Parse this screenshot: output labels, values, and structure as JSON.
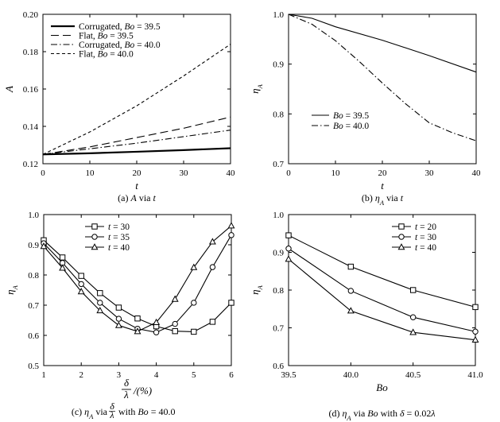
{
  "chart_data": [
    {
      "type": "line",
      "caption": "(a) A via t",
      "xlabel": "t",
      "ylabel": "A",
      "xlim": [
        0,
        40
      ],
      "ylim": [
        0.12,
        0.2
      ],
      "xticks": [
        0,
        10,
        20,
        30,
        40
      ],
      "yticks": [
        0.12,
        0.14,
        0.16,
        0.18,
        0.2
      ],
      "ytick_labels": [
        "0.12",
        "0.14",
        "0.16",
        "0.18",
        "0.20"
      ],
      "legend_position": "top-left",
      "series": [
        {
          "name": "Corrugated, Bo = 39.5",
          "style": "solid-thick",
          "x": [
            0,
            10,
            20,
            30,
            40
          ],
          "y": [
            0.125,
            0.1256,
            0.1264,
            0.1273,
            0.1283
          ]
        },
        {
          "name": "Flat, Bo = 39.5",
          "style": "dashed-long",
          "x": [
            0,
            10,
            20,
            30,
            40
          ],
          "y": [
            0.125,
            0.129,
            0.134,
            0.139,
            0.145
          ]
        },
        {
          "name": "Corrugated, Bo = 40.0",
          "style": "dashdot",
          "x": [
            0,
            10,
            20,
            30,
            40
          ],
          "y": [
            0.125,
            0.128,
            0.131,
            0.1345,
            0.138
          ]
        },
        {
          "name": "Flat, Bo = 40.0",
          "style": "dashed-short",
          "x": [
            0,
            10,
            20,
            30,
            40
          ],
          "y": [
            0.125,
            0.137,
            0.151,
            0.167,
            0.184
          ]
        }
      ]
    },
    {
      "type": "line",
      "caption": "(b) ηA via t",
      "xlabel": "t",
      "ylabel": "ηA",
      "xlim": [
        0,
        40
      ],
      "ylim": [
        0.7,
        1.0
      ],
      "xticks": [
        0,
        10,
        20,
        30,
        40
      ],
      "yticks": [
        0.7,
        0.8,
        0.9,
        1.0
      ],
      "ytick_labels": [
        "0.7",
        "0.8",
        "0.9",
        "1.0"
      ],
      "legend_position": "bottom-left",
      "series": [
        {
          "name": "Bo = 39.5",
          "style": "solid",
          "x": [
            0,
            5,
            10,
            20,
            30,
            40
          ],
          "y": [
            1.0,
            0.992,
            0.975,
            0.948,
            0.917,
            0.884
          ]
        },
        {
          "name": "Bo = 40.0",
          "style": "dashdot",
          "x": [
            0,
            5,
            10,
            15,
            20,
            25,
            30,
            35,
            40
          ],
          "y": [
            1.0,
            0.98,
            0.947,
            0.906,
            0.862,
            0.82,
            0.782,
            0.762,
            0.746
          ]
        }
      ]
    },
    {
      "type": "line",
      "caption_prefix": "(c) ηA via",
      "caption_frac_num": "δ",
      "caption_frac_den": "λ",
      "caption_suffix": "with Bo = 40.0",
      "xlabel_frac_num": "δ",
      "xlabel_frac_den": "λ",
      "xlabel_suffix": "/(%)",
      "ylabel": "ηA",
      "xlim": [
        1,
        6
      ],
      "ylim": [
        0.5,
        1.0
      ],
      "xticks": [
        1,
        2,
        3,
        4,
        5,
        6
      ],
      "yticks": [
        0.5,
        0.6,
        0.7,
        0.8,
        0.9,
        1.0
      ],
      "ytick_labels": [
        "0.5",
        "0.6",
        "0.7",
        "0.8",
        "0.9",
        "1.0"
      ],
      "legend_position": "top-center",
      "series": [
        {
          "name": "t = 30",
          "marker": "square",
          "x": [
            1,
            1.5,
            2,
            2.5,
            3,
            3.5,
            4,
            4.5,
            5,
            5.5,
            6
          ],
          "y": [
            0.915,
            0.858,
            0.797,
            0.74,
            0.692,
            0.656,
            0.63,
            0.614,
            0.612,
            0.645,
            0.708
          ]
        },
        {
          "name": "t = 35",
          "marker": "circle",
          "x": [
            1,
            1.5,
            2,
            2.5,
            3,
            3.5,
            4,
            4.5,
            5,
            5.5,
            6
          ],
          "y": [
            0.905,
            0.84,
            0.77,
            0.708,
            0.655,
            0.622,
            0.61,
            0.638,
            0.708,
            0.826,
            0.932
          ]
        },
        {
          "name": "t = 40",
          "marker": "triangle",
          "x": [
            1,
            1.5,
            2,
            2.5,
            3,
            3.5,
            4,
            4.5,
            5,
            5.5,
            6
          ],
          "y": [
            0.895,
            0.823,
            0.745,
            0.682,
            0.633,
            0.613,
            0.643,
            0.72,
            0.825,
            0.91,
            0.963
          ]
        }
      ]
    },
    {
      "type": "line",
      "caption": "(d) ηA via Bo with δ = 0.02λ",
      "xlabel": "Bo",
      "ylabel": "ηA",
      "xlim": [
        39.5,
        41.0
      ],
      "ylim": [
        0.6,
        1.0
      ],
      "xticks": [
        39.5,
        40.0,
        40.5,
        41.0
      ],
      "xtick_labels": [
        "39.5",
        "40.0",
        "40.5",
        "41.0"
      ],
      "yticks": [
        0.6,
        0.7,
        0.8,
        0.9,
        1.0
      ],
      "ytick_labels": [
        "0.6",
        "0.7",
        "0.8",
        "0.9",
        "1.0"
      ],
      "legend_position": "top-right",
      "series": [
        {
          "name": "t = 20",
          "marker": "square",
          "x": [
            39.5,
            40.0,
            40.5,
            41.0
          ],
          "y": [
            0.945,
            0.862,
            0.8,
            0.755
          ]
        },
        {
          "name": "t = 30",
          "marker": "circle",
          "x": [
            39.5,
            40.0,
            40.5,
            41.0
          ],
          "y": [
            0.91,
            0.798,
            0.728,
            0.69
          ]
        },
        {
          "name": "t = 40",
          "marker": "triangle",
          "x": [
            39.5,
            40.0,
            40.5,
            41.0
          ],
          "y": [
            0.882,
            0.745,
            0.688,
            0.668
          ]
        }
      ]
    }
  ]
}
